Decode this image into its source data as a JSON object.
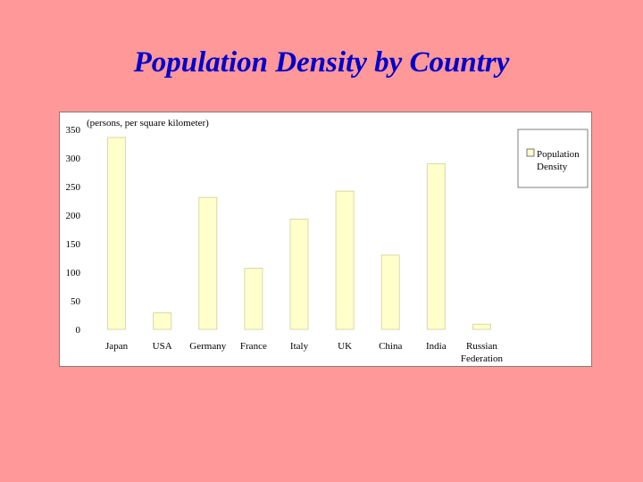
{
  "slide": {
    "title": "Population Density by Country"
  },
  "colors": {
    "background": "#ff9999",
    "title": "#0000cc",
    "bar_fill": "#ffffcc",
    "bar_stroke": "#d8d8a8",
    "panel": "#ffffff"
  },
  "chart_data": {
    "type": "bar",
    "title": "",
    "ylabel": "(persons, per square kilometer)",
    "xlabel": "",
    "categories": [
      "Japan",
      "USA",
      "Germany",
      "France",
      "Italy",
      "UK",
      "China",
      "India",
      "Russian Federation"
    ],
    "series": [
      {
        "name": "Population Density",
        "values": [
          336,
          29,
          231,
          107,
          193,
          242,
          130,
          290,
          9
        ]
      }
    ],
    "ylim": [
      0,
      350
    ],
    "yticks": [
      "0",
      "50",
      "100",
      "150",
      "200",
      "250",
      "300",
      "350"
    ],
    "grid": false,
    "legend": "right"
  }
}
